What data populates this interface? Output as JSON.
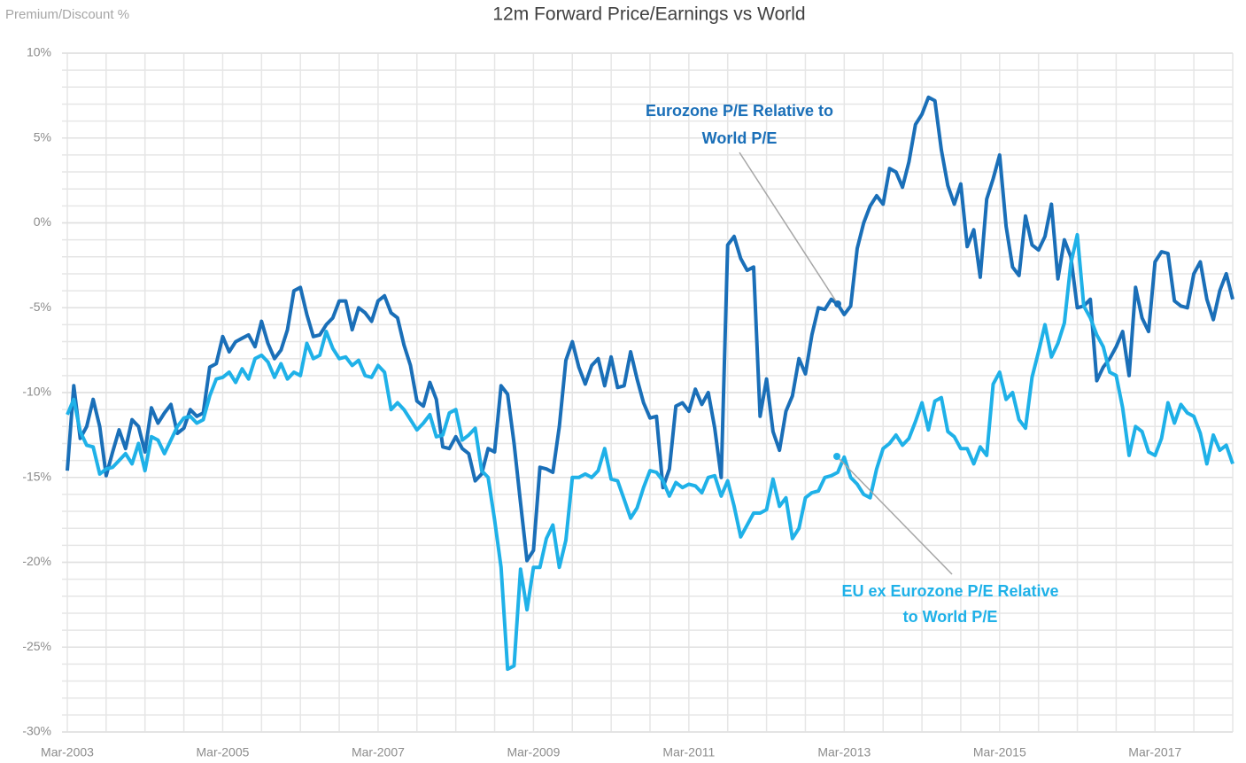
{
  "chart_data": {
    "type": "line",
    "title": "12m Forward Price/Earnings vs World",
    "y_axis_label": "Premium/Discount %",
    "grid": true,
    "categories": [
      "Mar-2003",
      null,
      null,
      null,
      null,
      null,
      null,
      null,
      null,
      null,
      null,
      null,
      null,
      null,
      null,
      null,
      null,
      null,
      null,
      null,
      null,
      null,
      null,
      null,
      "Mar-2005",
      null,
      null,
      null,
      null,
      null,
      null,
      null,
      null,
      null,
      null,
      null,
      null,
      null,
      null,
      null,
      null,
      null,
      null,
      null,
      null,
      null,
      null,
      null,
      "Mar-2007",
      null,
      null,
      null,
      null,
      null,
      null,
      null,
      null,
      null,
      null,
      null,
      null,
      null,
      null,
      null,
      null,
      null,
      null,
      null,
      null,
      null,
      null,
      null,
      "Mar-2009",
      null,
      null,
      null,
      null,
      null,
      null,
      null,
      null,
      null,
      null,
      null,
      null,
      null,
      null,
      null,
      null,
      null,
      null,
      null,
      null,
      null,
      null,
      null,
      "Mar-2011",
      null,
      null,
      null,
      null,
      null,
      null,
      null,
      null,
      null,
      null,
      null,
      null,
      null,
      null,
      null,
      null,
      null,
      null,
      null,
      null,
      null,
      null,
      null,
      "Mar-2013",
      null,
      null,
      null,
      null,
      null,
      null,
      null,
      null,
      null,
      null,
      null,
      null,
      null,
      null,
      null,
      null,
      null,
      null,
      null,
      null,
      null,
      null,
      null,
      "Mar-2015",
      null,
      null,
      null,
      null,
      null,
      null,
      null,
      null,
      null,
      null,
      null,
      null,
      null,
      null,
      null,
      null,
      null,
      null,
      null,
      null,
      null,
      null,
      null,
      "Mar-2017",
      null,
      null,
      null,
      null,
      null,
      null,
      null,
      null,
      null,
      null,
      null,
      null
    ],
    "series": [
      {
        "name": "Eurozone P/E Relative to World P/E",
        "color": "#1a6fb8",
        "values": [
          -14.6,
          -9.6,
          -12.7,
          -12.0,
          -10.4,
          -12.0,
          -14.9,
          -13.5,
          -12.2,
          -13.3,
          -11.6,
          -12.0,
          -13.5,
          -10.9,
          -11.8,
          -11.2,
          -10.7,
          -12.4,
          -12.1,
          -11.0,
          -11.4,
          -11.2,
          -8.5,
          -8.3,
          -6.7,
          -7.6,
          -7.0,
          -6.8,
          -6.6,
          -7.3,
          -5.8,
          -7.1,
          -8.0,
          -7.5,
          -6.3,
          -4.0,
          -3.8,
          -5.4,
          -6.7,
          -6.6,
          -6.0,
          -5.6,
          -4.6,
          -4.6,
          -6.3,
          -5.0,
          -5.3,
          -5.8,
          -4.6,
          -4.3,
          -5.3,
          -5.6,
          -7.2,
          -8.4,
          -10.5,
          -10.8,
          -9.4,
          -10.4,
          -13.2,
          -13.3,
          -12.6,
          -13.3,
          -13.6,
          -15.2,
          -14.8,
          -13.3,
          -13.5,
          -9.6,
          -10.1,
          -13.0,
          -16.5,
          -19.9,
          -19.3,
          -14.4,
          -14.5,
          -14.7,
          -12.0,
          -8.1,
          -7.0,
          -8.5,
          -9.5,
          -8.4,
          -8.0,
          -9.6,
          -7.9,
          -9.7,
          -9.6,
          -7.6,
          -9.2,
          -10.6,
          -11.5,
          -11.4,
          -15.6,
          -14.5,
          -10.8,
          -10.6,
          -11.1,
          -9.8,
          -10.7,
          -10.0,
          -12.1,
          -15.0,
          -1.3,
          -0.8,
          -2.1,
          -2.8,
          -2.6,
          -11.4,
          -9.2,
          -12.3,
          -13.4,
          -11.1,
          -10.2,
          -8.0,
          -8.9,
          -6.6,
          -5.0,
          -5.1,
          -4.5,
          -4.8,
          -5.4,
          -4.9,
          -1.5,
          0.0,
          1.0,
          1.6,
          1.1,
          3.2,
          3.0,
          2.1,
          3.6,
          5.8,
          6.4,
          7.4,
          7.2,
          4.3,
          2.2,
          1.1,
          2.3,
          -1.4,
          -0.4,
          -3.2,
          1.4,
          2.6,
          4.0,
          -0.2,
          -2.6,
          -3.1,
          0.4,
          -1.3,
          -1.6,
          -0.8,
          1.1,
          -3.3,
          -1.0,
          -2.0,
          -5.0,
          -4.9,
          -4.5,
          -9.3,
          -8.5,
          -8.0,
          -7.3,
          -6.4,
          -9.0,
          -3.8,
          -5.6,
          -6.4,
          -2.3,
          -1.7,
          -1.8,
          -4.6,
          -4.9,
          -5.0,
          -3.0,
          -2.3,
          -4.5,
          -5.7,
          -4.0,
          -3.0,
          -4.5
        ]
      },
      {
        "name": "EU ex Eurozone P/E Relative to World P/E",
        "color": "#1fb1e8",
        "values": [
          -11.3,
          -10.4,
          -12.3,
          -13.1,
          -13.2,
          -14.8,
          -14.5,
          -14.4,
          -14.0,
          -13.6,
          -14.2,
          -13.0,
          -14.6,
          -12.6,
          -12.8,
          -13.6,
          -12.8,
          -12.0,
          -11.5,
          -11.4,
          -11.8,
          -11.6,
          -10.2,
          -9.2,
          -9.1,
          -8.8,
          -9.4,
          -8.6,
          -9.2,
          -8.0,
          -7.8,
          -8.2,
          -9.1,
          -8.3,
          -9.2,
          -8.8,
          -9.0,
          -7.1,
          -8.0,
          -7.8,
          -6.4,
          -7.4,
          -8.0,
          -7.9,
          -8.4,
          -8.1,
          -9.0,
          -9.1,
          -8.4,
          -8.8,
          -11.0,
          -10.6,
          -11.0,
          -11.6,
          -12.2,
          -11.8,
          -11.3,
          -12.6,
          -12.5,
          -11.2,
          -11.0,
          -12.8,
          -12.5,
          -12.1,
          -14.6,
          -15.0,
          -17.5,
          -20.3,
          -26.3,
          -26.1,
          -20.4,
          -22.8,
          -20.3,
          -20.3,
          -18.6,
          -17.8,
          -20.3,
          -18.7,
          -15.0,
          -15.0,
          -14.8,
          -15.0,
          -14.6,
          -13.3,
          -15.1,
          -15.2,
          -16.3,
          -17.4,
          -16.8,
          -15.6,
          -14.6,
          -14.7,
          -15.2,
          -16.1,
          -15.3,
          -15.6,
          -15.4,
          -15.5,
          -15.9,
          -15.0,
          -14.9,
          -16.1,
          -15.2,
          -16.7,
          -18.5,
          -17.8,
          -17.1,
          -17.1,
          -16.9,
          -15.1,
          -16.7,
          -16.2,
          -18.6,
          -18.0,
          -16.2,
          -15.9,
          -15.8,
          -15.0,
          -14.9,
          -14.7,
          -13.8,
          -15.0,
          -15.4,
          -16.0,
          -16.2,
          -14.5,
          -13.3,
          -13.0,
          -12.5,
          -13.1,
          -12.7,
          -11.7,
          -10.6,
          -12.2,
          -10.5,
          -10.3,
          -12.3,
          -12.6,
          -13.3,
          -13.3,
          -14.2,
          -13.2,
          -13.7,
          -9.5,
          -8.8,
          -10.4,
          -10.0,
          -11.6,
          -12.1,
          -9.1,
          -7.6,
          -6.0,
          -7.9,
          -7.1,
          -5.9,
          -2.4,
          -0.7,
          -4.9,
          -5.6,
          -6.6,
          -7.3,
          -8.8,
          -9.0,
          -10.9,
          -13.7,
          -12.0,
          -12.3,
          -13.5,
          -13.7,
          -12.7,
          -10.6,
          -11.8,
          -10.7,
          -11.2,
          -11.4,
          -12.4,
          -14.2,
          -12.5,
          -13.4,
          -13.1,
          -14.2
        ]
      }
    ],
    "annotations": [
      {
        "lines": [
          "Eurozone P/E Relative to",
          "World P/E"
        ],
        "series": 0
      },
      {
        "lines": [
          "EU ex Eurozone P/E Relative",
          "to World P/E"
        ],
        "series": 1
      }
    ],
    "ylim": [
      -30,
      10
    ],
    "yticks": [
      {
        "value": -30,
        "label": "-30%"
      },
      {
        "value": -25,
        "label": "-25%"
      },
      {
        "value": -20,
        "label": "-20%"
      },
      {
        "value": -15,
        "label": "-15%"
      },
      {
        "value": -10,
        "label": "-10%"
      },
      {
        "value": -5,
        "label": "-5%"
      },
      {
        "value": 0,
        "label": "0%"
      },
      {
        "value": 5,
        "label": "5%"
      },
      {
        "value": 10,
        "label": "10%"
      }
    ]
  }
}
